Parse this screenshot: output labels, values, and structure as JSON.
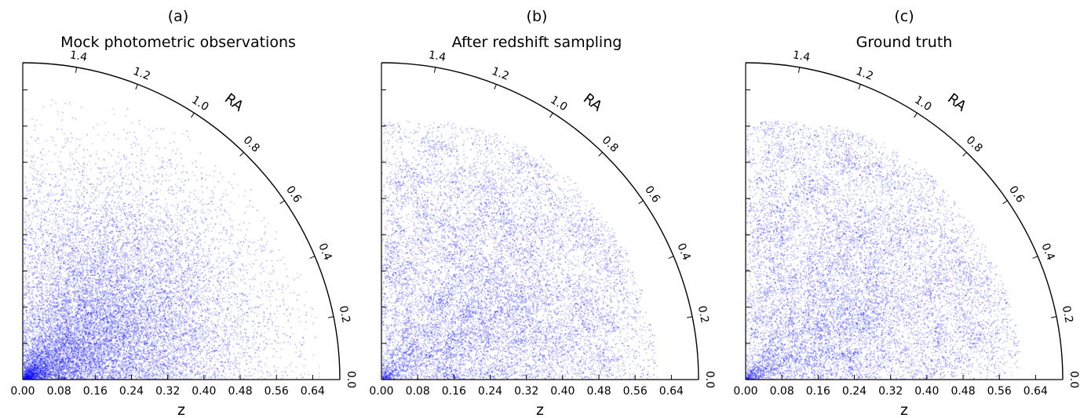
{
  "chart_data": [
    {
      "type": "scatter",
      "subplot_label": "(a)",
      "title": "Mock photometric observations",
      "xlabel": "z",
      "ylabel": "",
      "angular_label": "RA",
      "radial_ticks": [
        "0.00",
        "0.08",
        "0.16",
        "0.24",
        "0.32",
        "0.40",
        "0.48",
        "0.56",
        "0.64"
      ],
      "angular_ticks": [
        "0.0",
        "0.2",
        "0.4",
        "0.6",
        "0.8",
        "1.0",
        "1.2",
        "1.4"
      ],
      "z_range": [
        0,
        0.7
      ],
      "ra_range": [
        0,
        1.5708
      ],
      "point_color": "#0000ff",
      "density": {
        "z_edge": 0.66,
        "z_peak": 0.26,
        "ra_peak": 0.5,
        "texture": "smooth"
      }
    },
    {
      "type": "scatter",
      "subplot_label": "(b)",
      "title": "After redshift sampling",
      "xlabel": "z",
      "ylabel": "",
      "angular_label": "RA",
      "radial_ticks": [
        "0.00",
        "0.08",
        "0.16",
        "0.24",
        "0.32",
        "0.40",
        "0.48",
        "0.56",
        "0.64"
      ],
      "angular_ticks": [
        "0.0",
        "0.2",
        "0.4",
        "0.6",
        "0.8",
        "1.0",
        "1.2",
        "1.4"
      ],
      "z_range": [
        0,
        0.7
      ],
      "ra_range": [
        0,
        1.5708
      ],
      "point_color": "#0000ff",
      "density": {
        "z_edge": 0.61,
        "z_peak": 0.28,
        "ra_peak": 0.5,
        "texture": "clustered"
      }
    },
    {
      "type": "scatter",
      "subplot_label": "(c)",
      "title": "Ground truth",
      "xlabel": "z",
      "ylabel": "",
      "angular_label": "RA",
      "radial_ticks": [
        "0.00",
        "0.08",
        "0.16",
        "0.24",
        "0.32",
        "0.40",
        "0.48",
        "0.56",
        "0.64"
      ],
      "angular_ticks": [
        "0.0",
        "0.2",
        "0.4",
        "0.6",
        "0.8",
        "1.0",
        "1.2",
        "1.4"
      ],
      "z_range": [
        0,
        0.7
      ],
      "ra_range": [
        0,
        1.5708
      ],
      "point_color": "#0000ff",
      "density": {
        "z_edge": 0.61,
        "z_peak": 0.28,
        "ra_peak": 0.5,
        "texture": "clustered"
      }
    }
  ]
}
